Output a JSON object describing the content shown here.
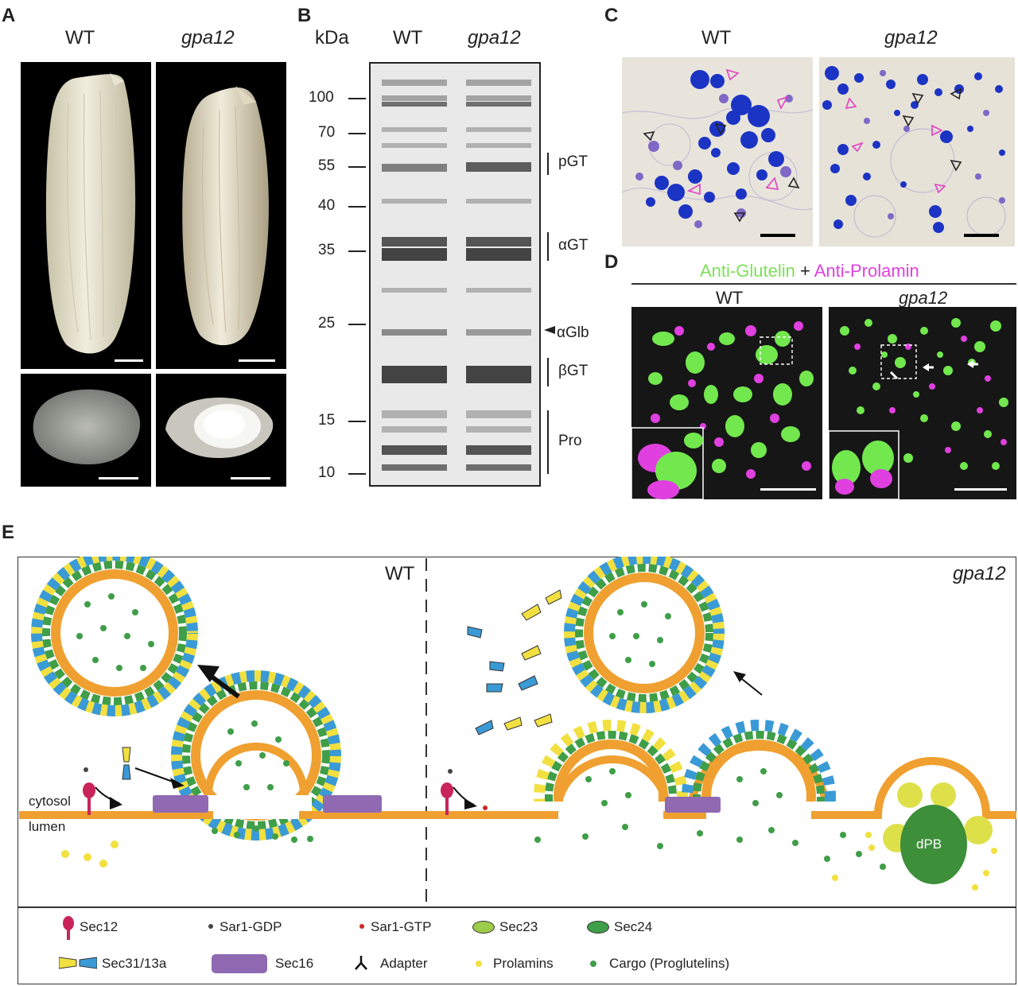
{
  "panels": {
    "A": "A",
    "B": "B",
    "C": "C",
    "D": "D",
    "E": "E"
  },
  "panelA": {
    "wt": "WT",
    "mut": "gpa12"
  },
  "panelB": {
    "unit": "kDa",
    "wt": "WT",
    "mut": "gpa12",
    "markers": [
      "100",
      "70",
      "55",
      "40",
      "35",
      "25",
      "15",
      "10"
    ],
    "bands": {
      "pGT": "pGT",
      "aGT": "αGT",
      "aGlb": "αGlb",
      "bGT": "βGT",
      "Pro": "Pro"
    }
  },
  "panelC": {
    "wt": "WT",
    "mut": "gpa12"
  },
  "panelD": {
    "green": "Anti-Glutelin",
    "plus": "+",
    "magenta": "Anti-Prolamin",
    "wt": "WT",
    "mut": "gpa12"
  },
  "panelE": {
    "wt": "WT",
    "mut": "gpa12",
    "cytosol": "cytosol",
    "lumen": "lumen",
    "dpb": "dPB",
    "legend": {
      "sec12": "Sec12",
      "sar1gdp": "Sar1-GDP",
      "sar1gtp": "Sar1-GTP",
      "sec23": "Sec23",
      "sec24": "Sec24",
      "sec31": "Sec31/13a",
      "sec16": "Sec16",
      "adapter": "Adapter",
      "prolamins": "Prolamins",
      "cargo": "Cargo (Proglutelins)"
    }
  },
  "colors": {
    "orange": "#f0a030",
    "yellow": "#f2e040",
    "blue": "#3a9ad6",
    "green": "#3f9e48",
    "sec23": "#9ccc4a",
    "purple": "#8f6ab2",
    "sec12": "#c8245a",
    "magenta": "#e040e0",
    "fluor_green": "#6fe84a"
  }
}
